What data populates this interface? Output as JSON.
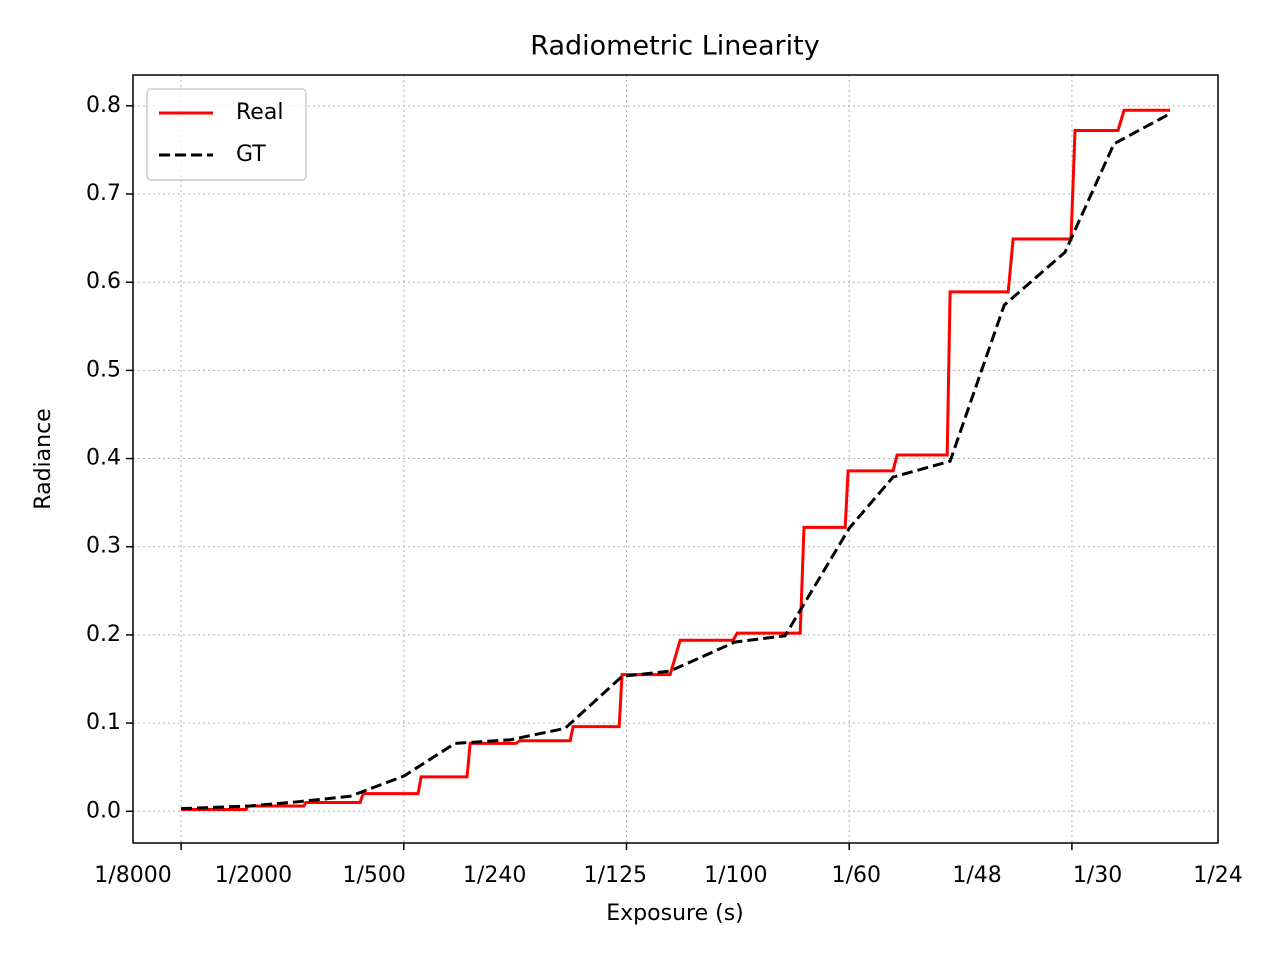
{
  "chart_data": {
    "type": "line",
    "title": "Radiometric Linearity",
    "xlabel": "Exposure (s)",
    "ylabel": "Radiance",
    "xlim": [
      -2.16,
      46.56
    ],
    "ylim": [
      -0.036,
      0.835
    ],
    "xticks": [
      {
        "value": -2.16,
        "label": "1/8000"
      },
      {
        "value": 3.25,
        "label": "1/2000"
      },
      {
        "value": 8.67,
        "label": "1/500"
      },
      {
        "value": 14.08,
        "label": "1/240"
      },
      {
        "value": 19.5,
        "label": "1/125"
      },
      {
        "value": 24.91,
        "label": "1/100"
      },
      {
        "value": 30.32,
        "label": "1/60"
      },
      {
        "value": 35.74,
        "label": "1/48"
      },
      {
        "value": 41.15,
        "label": "1/30"
      },
      {
        "value": 46.56,
        "label": "1/24"
      }
    ],
    "xgridticks": [
      0,
      10,
      20,
      30,
      40
    ],
    "yticks": [
      {
        "value": 0,
        "label": "0.0"
      },
      0.1,
      0.2,
      0.3,
      0.4,
      0.5,
      0.6,
      0.7,
      0.8
    ],
    "grid": true,
    "legend": "upper left",
    "series": [
      {
        "name": "Real",
        "color": "#ff0000",
        "style": "solid",
        "x": [
          0,
          2.92,
          3.0,
          5.52,
          5.6,
          8.04,
          8.17,
          10.64,
          10.78,
          12.84,
          12.98,
          15.04,
          15.2,
          17.47,
          17.6,
          19.67,
          19.8,
          21.96,
          22.41,
          24.79,
          24.97,
          27.8,
          27.97,
          29.82,
          29.95,
          31.97,
          32.15,
          34.4,
          34.53,
          37.14,
          37.36,
          39.96,
          40.14,
          42.07,
          42.34,
          44.41
        ],
        "values": [
          0.002,
          0.002,
          0.006,
          0.006,
          0.01,
          0.01,
          0.02,
          0.02,
          0.039,
          0.039,
          0.077,
          0.077,
          0.08,
          0.08,
          0.096,
          0.096,
          0.155,
          0.155,
          0.194,
          0.194,
          0.202,
          0.202,
          0.322,
          0.322,
          0.386,
          0.386,
          0.404,
          0.404,
          0.589,
          0.589,
          0.649,
          0.649,
          0.772,
          0.772,
          0.795,
          0.795
        ]
      },
      {
        "name": "GT",
        "color": "#000000",
        "style": "dashed",
        "x": [
          0,
          3.1,
          5.34,
          7.59,
          10.01,
          12.3,
          14.77,
          17.24,
          19.8,
          21.96,
          24.88,
          27.12,
          30.0,
          31.97,
          34.53,
          36.96,
          39.69,
          41.89,
          44.32
        ],
        "values": [
          0.003,
          0.006,
          0.011,
          0.017,
          0.04,
          0.077,
          0.081,
          0.094,
          0.153,
          0.159,
          0.192,
          0.199,
          0.321,
          0.379,
          0.397,
          0.574,
          0.634,
          0.757,
          0.79
        ]
      }
    ]
  }
}
